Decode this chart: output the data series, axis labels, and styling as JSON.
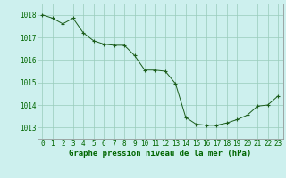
{
  "x": [
    0,
    1,
    2,
    3,
    4,
    5,
    6,
    7,
    8,
    9,
    10,
    11,
    12,
    13,
    14,
    15,
    16,
    17,
    18,
    19,
    20,
    21,
    22,
    23
  ],
  "y": [
    1018.0,
    1017.85,
    1017.6,
    1017.85,
    1017.2,
    1016.85,
    1016.7,
    1016.65,
    1016.65,
    1016.2,
    1015.55,
    1015.55,
    1015.5,
    1014.95,
    1013.45,
    1013.15,
    1013.1,
    1013.1,
    1013.2,
    1013.35,
    1013.55,
    1013.95,
    1014.0,
    1014.4
  ],
  "line_color": "#1a5c1a",
  "marker": "+",
  "marker_size": 3,
  "background_color": "#cdf0ee",
  "grid_color": "#99ccbb",
  "xlabel": "Graphe pression niveau de la mer (hPa)",
  "xlabel_color": "#006600",
  "xlabel_fontsize": 6.5,
  "tick_color": "#006600",
  "tick_fontsize": 5.5,
  "ylim": [
    1012.5,
    1018.5
  ],
  "xlim": [
    -0.5,
    23.5
  ],
  "yticks": [
    1013,
    1014,
    1015,
    1016,
    1017,
    1018
  ],
  "xticks": [
    0,
    1,
    2,
    3,
    4,
    5,
    6,
    7,
    8,
    9,
    10,
    11,
    12,
    13,
    14,
    15,
    16,
    17,
    18,
    19,
    20,
    21,
    22,
    23
  ]
}
